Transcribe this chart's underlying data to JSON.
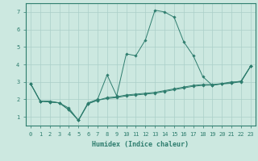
{
  "xlabel": "Humidex (Indice chaleur)",
  "x_values": [
    0,
    1,
    2,
    3,
    4,
    5,
    6,
    7,
    8,
    9,
    10,
    11,
    12,
    13,
    14,
    15,
    16,
    17,
    18,
    19,
    20,
    21,
    22,
    23
  ],
  "line1": [
    2.9,
    1.9,
    1.9,
    1.8,
    1.5,
    0.8,
    1.8,
    2.0,
    3.4,
    2.2,
    4.6,
    4.5,
    5.4,
    7.1,
    7.0,
    6.7,
    5.3,
    4.5,
    3.3,
    2.8,
    2.9,
    3.0,
    3.0,
    3.9
  ],
  "line2": [
    2.9,
    1.9,
    1.85,
    1.8,
    1.4,
    0.8,
    1.75,
    1.95,
    2.1,
    2.15,
    2.25,
    2.3,
    2.35,
    2.4,
    2.5,
    2.6,
    2.7,
    2.8,
    2.85,
    2.85,
    2.9,
    2.95,
    3.05,
    3.9
  ],
  "line3": [
    2.9,
    1.9,
    1.85,
    1.8,
    1.4,
    0.8,
    1.75,
    1.95,
    2.05,
    2.1,
    2.2,
    2.25,
    2.3,
    2.35,
    2.45,
    2.55,
    2.65,
    2.75,
    2.8,
    2.82,
    2.88,
    2.92,
    3.02,
    3.9
  ],
  "line_color": "#2e7d6e",
  "bg_color": "#cce8e0",
  "grid_color": "#aacfc8",
  "ylim": [
    0.5,
    7.5
  ],
  "xlim": [
    -0.5,
    23.5
  ],
  "yticks": [
    1,
    2,
    3,
    4,
    5,
    6,
    7
  ],
  "xticks": [
    0,
    1,
    2,
    3,
    4,
    5,
    6,
    7,
    8,
    9,
    10,
    11,
    12,
    13,
    14,
    15,
    16,
    17,
    18,
    19,
    20,
    21,
    22,
    23
  ]
}
